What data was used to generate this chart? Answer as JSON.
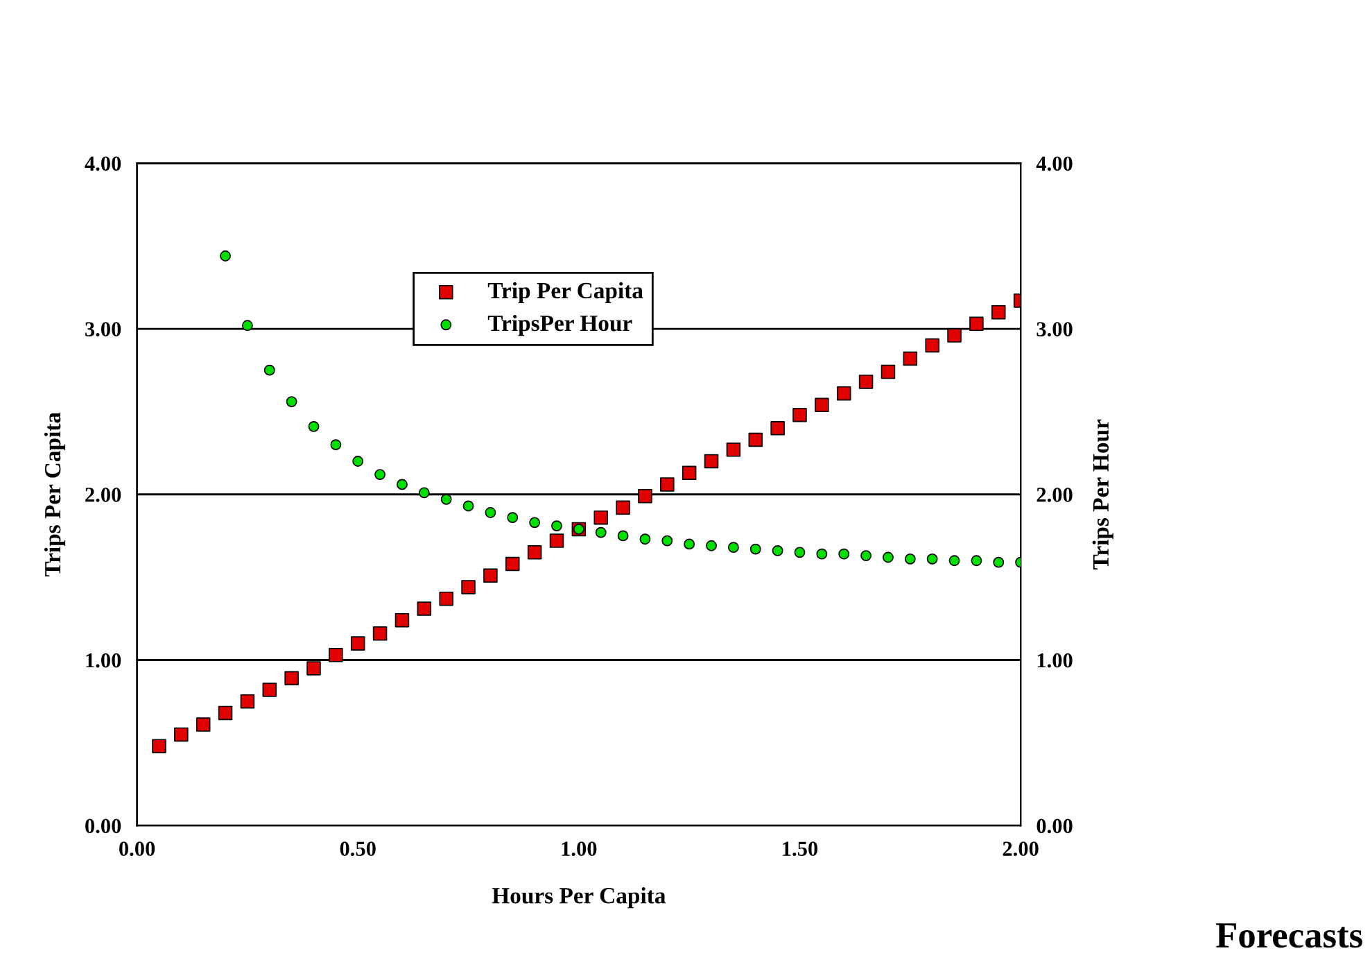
{
  "chart_data": {
    "type": "scatter",
    "xlabel": "Hours Per Capita",
    "ylabel": "Trips Per Capita",
    "y2label": "Trips Per Hour",
    "annotations": [
      "Forecasts"
    ],
    "xlim": [
      0,
      2
    ],
    "xticks": [
      {
        "value": 0,
        "label": "0.00"
      },
      {
        "value": 0.5,
        "label": "0.50"
      },
      {
        "value": 1,
        "label": "1.00"
      },
      {
        "value": 1.5,
        "label": "1.50"
      },
      {
        "value": 2,
        "label": "2.00"
      }
    ],
    "ylim": [
      0,
      4
    ],
    "yticks": [
      {
        "value": 0,
        "label": "0.00"
      },
      {
        "value": 1,
        "label": "1.00"
      },
      {
        "value": 2,
        "label": "2.00"
      },
      {
        "value": 3,
        "label": "3.00"
      },
      {
        "value": 4,
        "label": "4.00"
      }
    ],
    "y2lim": [
      0,
      4
    ],
    "y2ticks": [
      {
        "value": 0,
        "label": "0.00"
      },
      {
        "value": 1,
        "label": "1.00"
      },
      {
        "value": 2,
        "label": "2.00"
      },
      {
        "value": 3,
        "label": "3.00"
      },
      {
        "value": 4,
        "label": "4.00"
      }
    ],
    "grid": "y",
    "legend": "top",
    "series": [
      {
        "name": "Trip Per Capita",
        "color": "#e00000",
        "marker": "square",
        "x": [
          0.05,
          0.1,
          0.15,
          0.2,
          0.25,
          0.3,
          0.35,
          0.4,
          0.45,
          0.5,
          0.55,
          0.6,
          0.65,
          0.7,
          0.75,
          0.8,
          0.85,
          0.9,
          0.95,
          1.0,
          1.05,
          1.1,
          1.15,
          1.2,
          1.25,
          1.3,
          1.35,
          1.4,
          1.45,
          1.5,
          1.55,
          1.6,
          1.65,
          1.7,
          1.75,
          1.8,
          1.85,
          1.9,
          1.95,
          2.0
        ],
        "values": [
          0.48,
          0.55,
          0.61,
          0.68,
          0.75,
          0.82,
          0.89,
          0.95,
          1.03,
          1.1,
          1.16,
          1.24,
          1.31,
          1.37,
          1.44,
          1.51,
          1.58,
          1.65,
          1.72,
          1.79,
          1.86,
          1.92,
          1.99,
          2.06,
          2.13,
          2.2,
          2.27,
          2.33,
          2.4,
          2.48,
          2.54,
          2.61,
          2.68,
          2.74,
          2.82,
          2.9,
          2.96,
          3.03,
          3.1,
          3.17
        ]
      },
      {
        "name": "TripsPer Hour",
        "color": "#00e000",
        "marker": "circle",
        "axis": "y2",
        "x": [
          0.2,
          0.25,
          0.3,
          0.35,
          0.4,
          0.45,
          0.5,
          0.55,
          0.6,
          0.65,
          0.7,
          0.75,
          0.8,
          0.85,
          0.9,
          0.95,
          1.0,
          1.05,
          1.1,
          1.15,
          1.2,
          1.25,
          1.3,
          1.35,
          1.4,
          1.45,
          1.5,
          1.55,
          1.6,
          1.65,
          1.7,
          1.75,
          1.8,
          1.85,
          1.9,
          1.95,
          2.0
        ],
        "values": [
          3.44,
          3.02,
          2.75,
          2.56,
          2.41,
          2.3,
          2.2,
          2.12,
          2.06,
          2.01,
          1.97,
          1.93,
          1.89,
          1.86,
          1.83,
          1.81,
          1.79,
          1.77,
          1.75,
          1.73,
          1.72,
          1.7,
          1.69,
          1.68,
          1.67,
          1.66,
          1.65,
          1.64,
          1.64,
          1.63,
          1.62,
          1.61,
          1.61,
          1.6,
          1.6,
          1.59,
          1.59
        ]
      }
    ]
  }
}
